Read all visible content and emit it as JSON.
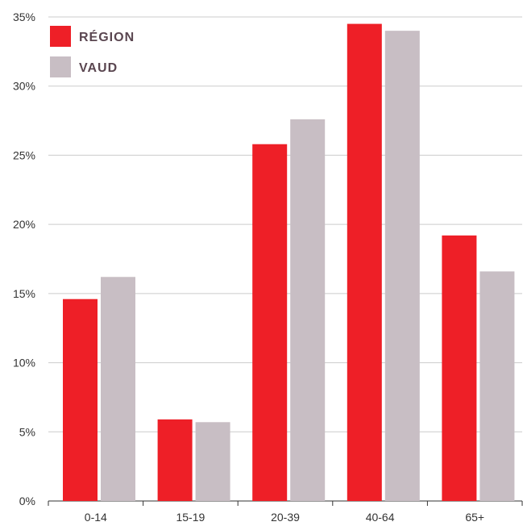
{
  "chart_data": {
    "type": "bar",
    "categories": [
      "0-14",
      "15-19",
      "20-39",
      "40-64",
      "65+"
    ],
    "series": [
      {
        "name": "RÉGION",
        "values": [
          14.6,
          5.9,
          25.8,
          34.5,
          19.2
        ]
      },
      {
        "name": "VAUD",
        "values": [
          16.2,
          5.7,
          27.6,
          34.0,
          16.6
        ]
      }
    ],
    "ylim": [
      0,
      35
    ],
    "yticks": [
      "0%",
      "5%",
      "10%",
      "15%",
      "20%",
      "25%",
      "30%",
      "35%"
    ],
    "grid": true,
    "legend_position": "top-left"
  },
  "colors": {
    "region": "#ee1f27",
    "vaud": "#c8bec4",
    "grid": "#cccccc",
    "axis": "#333333"
  }
}
